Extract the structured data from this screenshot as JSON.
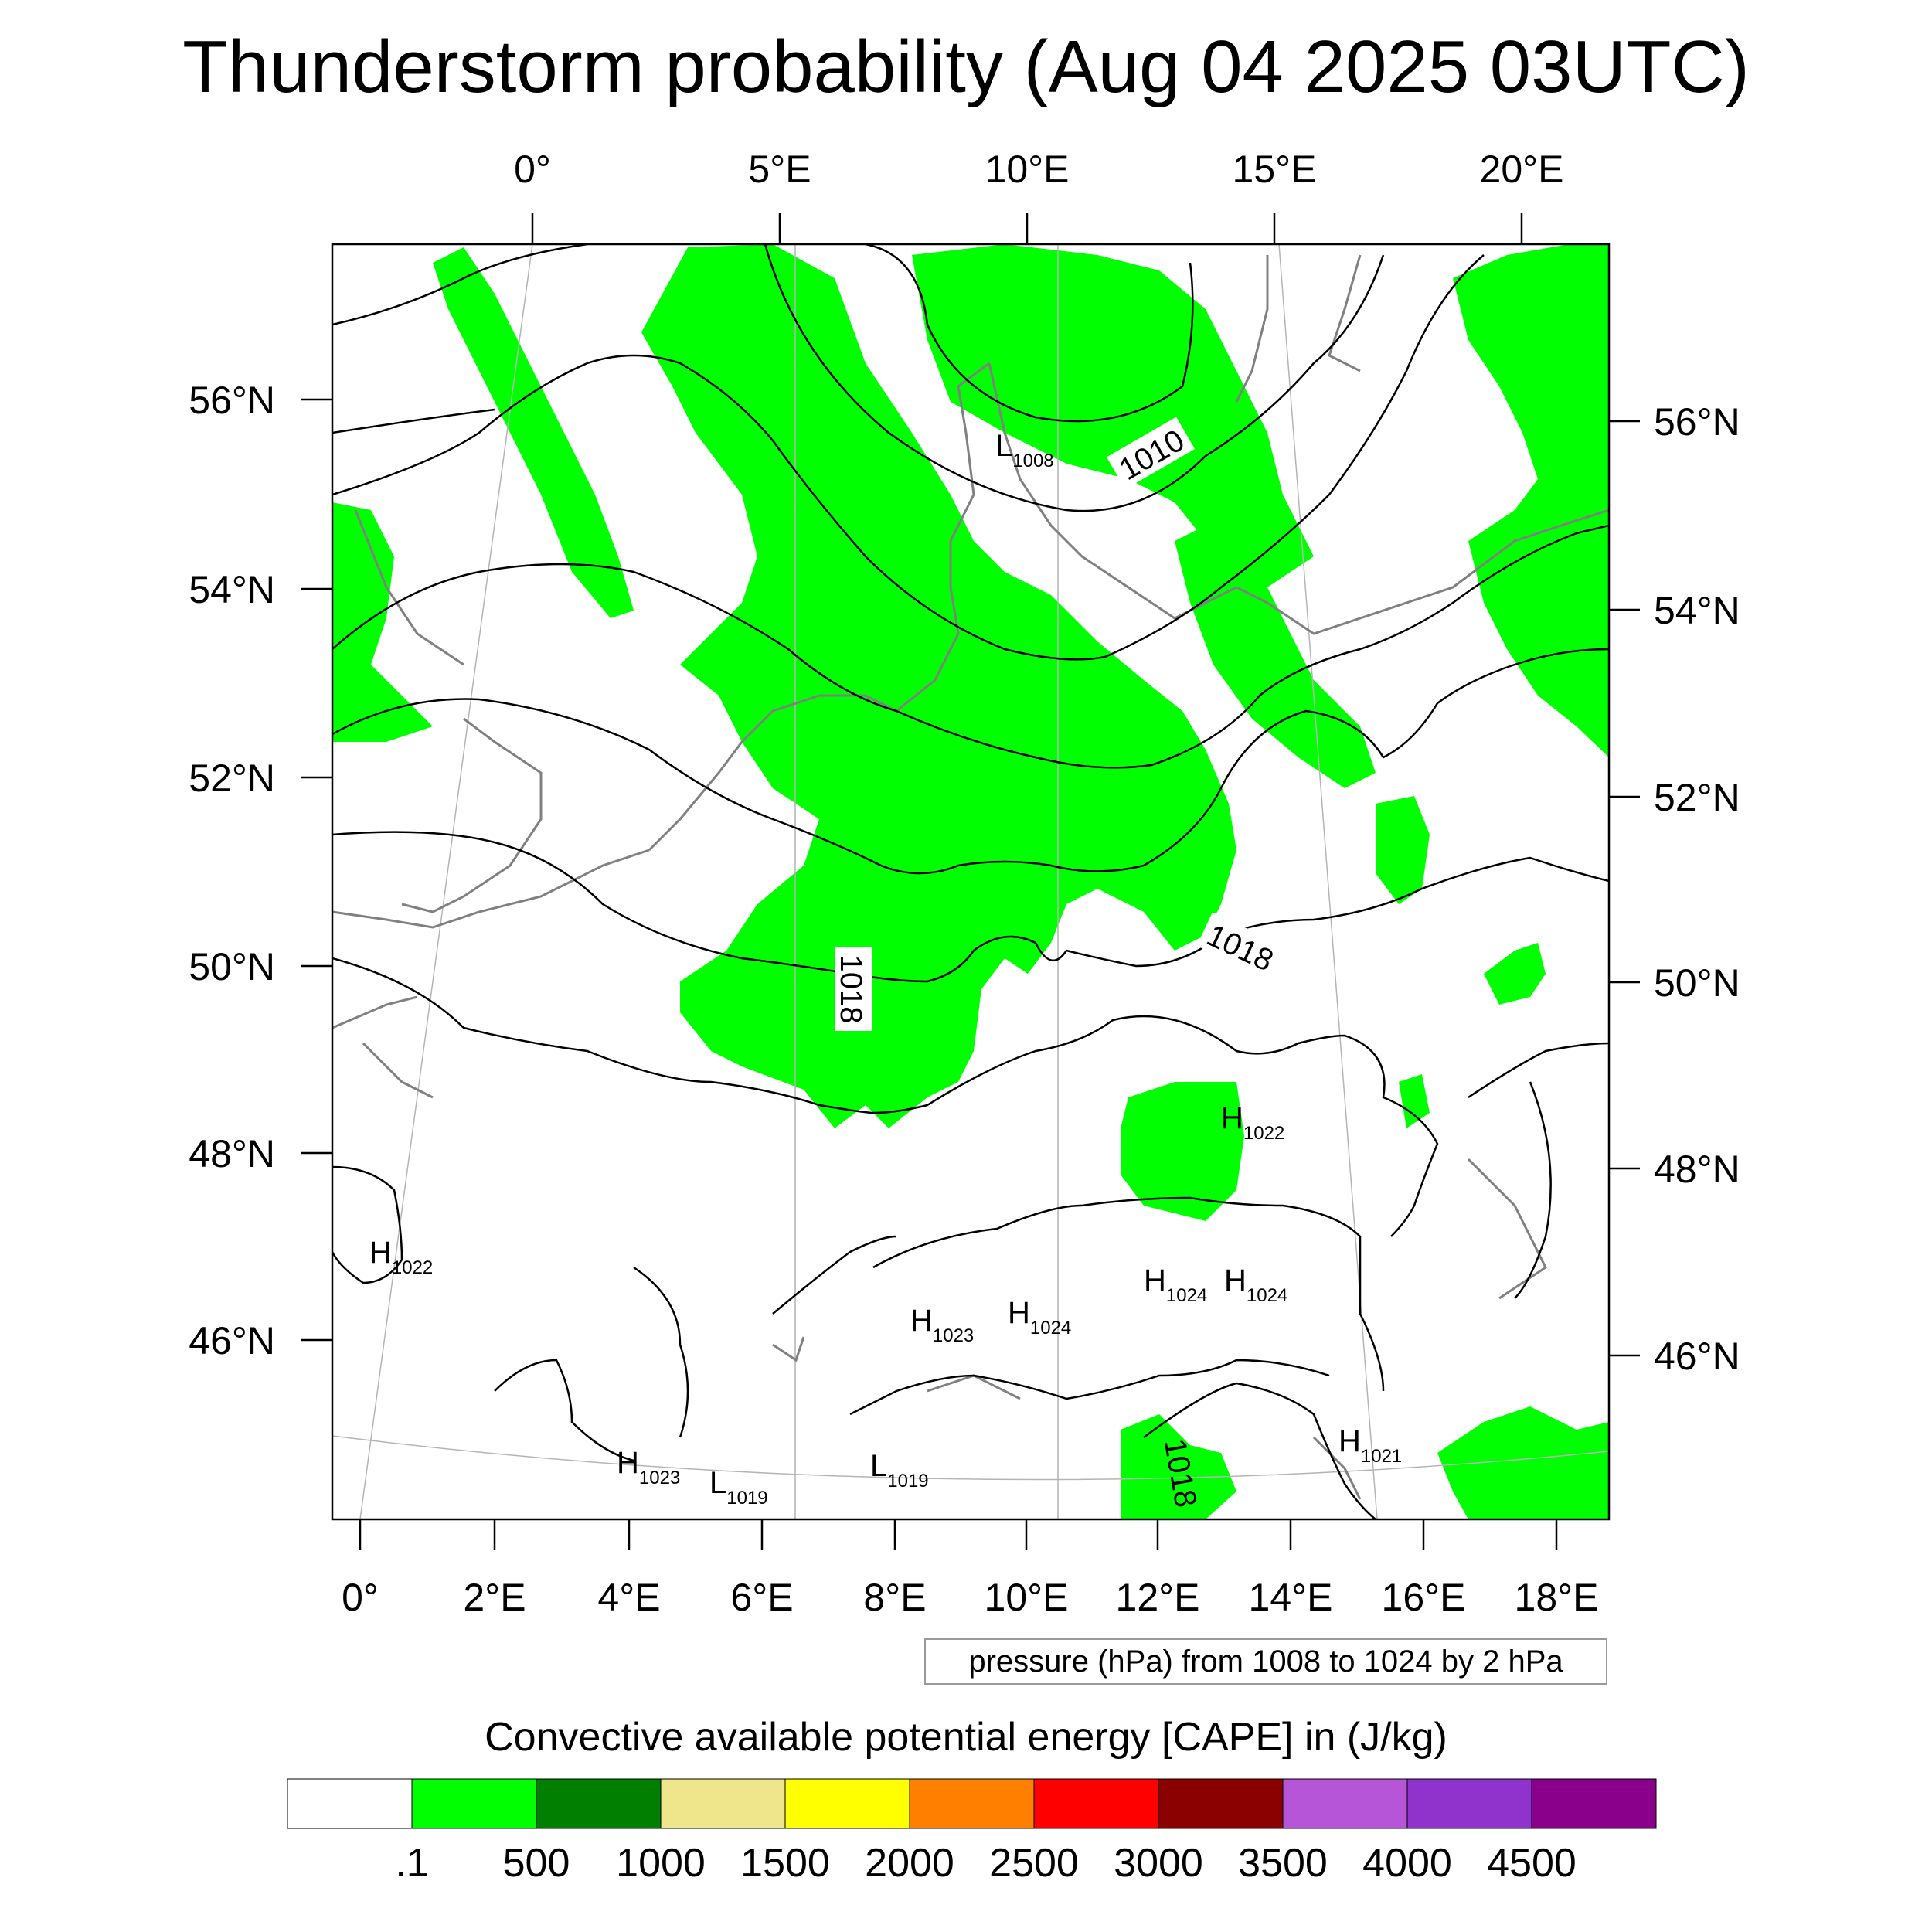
{
  "title": "Thunderstorm probability (Aug 04 2025 03UTC)",
  "top_longitude_labels": [
    "0°",
    "5°E",
    "10°E",
    "15°E",
    "20°E"
  ],
  "bottom_longitude_labels": [
    "0°",
    "2°E",
    "4°E",
    "6°E",
    "8°E",
    "10°E",
    "12°E",
    "14°E",
    "16°E",
    "18°E"
  ],
  "left_latitude_labels": [
    "56°N",
    "54°N",
    "52°N",
    "50°N",
    "48°N",
    "46°N"
  ],
  "right_latitude_labels": [
    "56°N",
    "54°N",
    "52°N",
    "50°N",
    "48°N",
    "46°N"
  ],
  "isobar_labels": [
    "1010",
    "1018",
    "1018",
    "1018"
  ],
  "pressure_centers": [
    {
      "type": "L",
      "value": "1008"
    },
    {
      "type": "H",
      "value": "1022"
    },
    {
      "type": "H",
      "value": "1022"
    },
    {
      "type": "H",
      "value": "1024"
    },
    {
      "type": "H",
      "value": "1024"
    },
    {
      "type": "H",
      "value": "1023"
    },
    {
      "type": "H",
      "value": "1024"
    },
    {
      "type": "H",
      "value": "1023"
    },
    {
      "type": "L",
      "value": "1019"
    },
    {
      "type": "L",
      "value": "1019"
    },
    {
      "type": "H",
      "value": "1021"
    }
  ],
  "contour_info": "pressure (hPa) from 1008 to 1024 by 2 hPa",
  "legend": {
    "title": "Convective available potential energy [CAPE] in (J/kg)",
    "colors": [
      "#ffffff",
      "#00ff00",
      "#007f00",
      "#efe68c",
      "#ffff00",
      "#ff8000",
      "#ff0000",
      "#8b0000",
      "#b655d8",
      "#9032cc",
      "#8b008b"
    ],
    "tick_labels": [
      ".1",
      "500",
      "1000",
      "1500",
      "2000",
      "2500",
      "3000",
      "3500",
      "4000",
      "4500"
    ]
  },
  "colors": {
    "cape_low": "#00ff00",
    "coastline": "#808080",
    "isobar": "#000000"
  }
}
